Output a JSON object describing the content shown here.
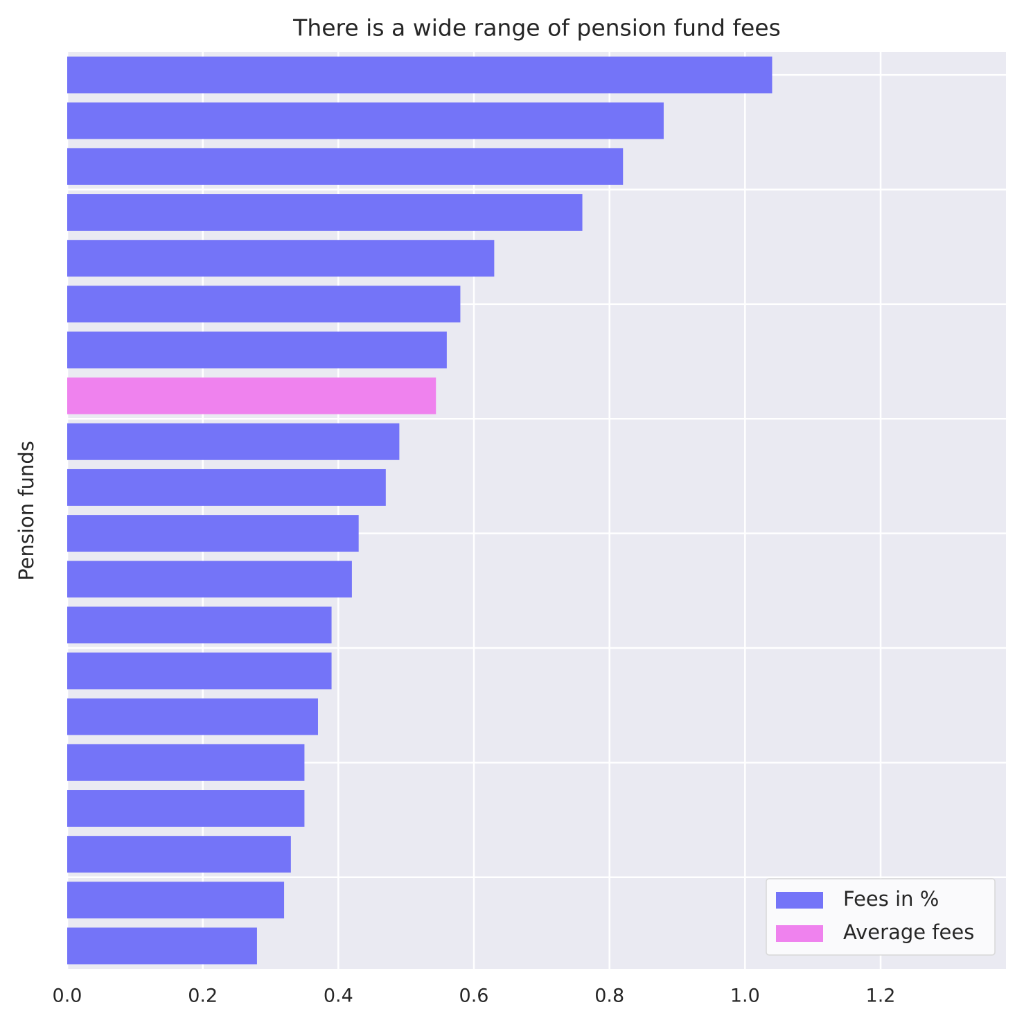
{
  "chart_data": {
    "type": "barh",
    "title": "There is a wide range of pension fund fees",
    "y_label": "Pension funds",
    "categories": [
      null,
      null,
      null,
      null,
      null,
      null,
      null,
      null,
      null,
      null,
      null,
      null,
      null,
      null,
      null,
      null,
      null,
      null,
      null,
      null
    ],
    "series": [
      {
        "name": "Fees in %",
        "color": "#7474f8",
        "values": [
          1.04,
          0.88,
          0.82,
          0.76,
          0.63,
          0.58,
          0.56,
          null,
          0.49,
          0.47,
          0.43,
          0.42,
          0.39,
          0.39,
          0.37,
          0.35,
          0.35,
          0.33,
          0.32,
          0.28
        ]
      },
      {
        "name": "Average fees",
        "color": "#ef82ee",
        "values": [
          null,
          null,
          null,
          null,
          null,
          null,
          null,
          0.544,
          null,
          null,
          null,
          null,
          null,
          null,
          null,
          null,
          null,
          null,
          null,
          null
        ]
      }
    ],
    "xlim": [
      0,
      1.385
    ],
    "xticks": [
      {
        "value": 0,
        "label": "0.0"
      },
      0.2,
      0.4,
      0.6,
      0.8,
      {
        "value": 1,
        "label": "1.0"
      },
      1.2
    ],
    "grid": true,
    "legend": "lower right"
  }
}
